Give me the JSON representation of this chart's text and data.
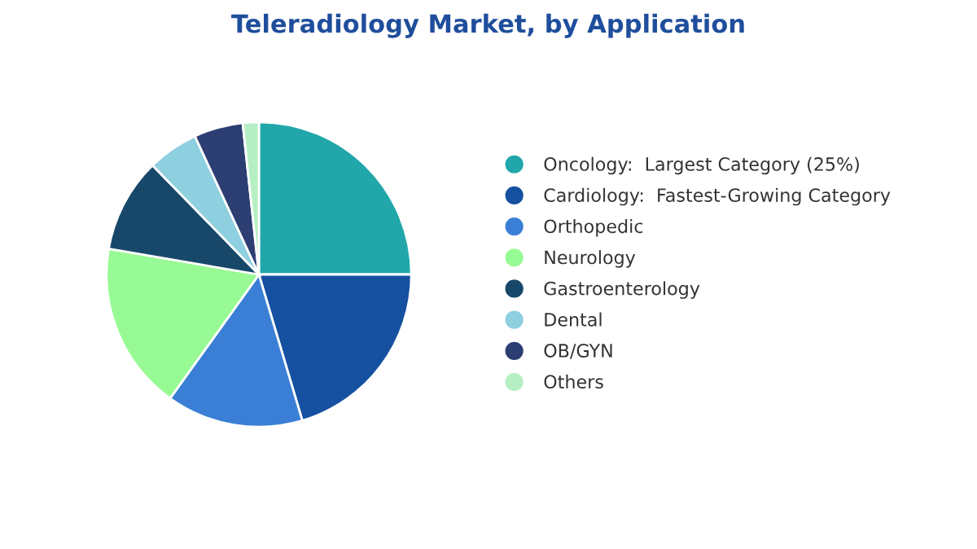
{
  "chart_data": {
    "type": "pie",
    "title": "Teleradiology Market, by Application",
    "categories": [
      "Oncology:  Largest Category (25%)",
      "Cardiology:  Fastest-Growing Category",
      "Orthopedic",
      "Neurology",
      "Gastroenterology",
      "Dental",
      "OB/GYN",
      "Others"
    ],
    "values": [
      25,
      20.4,
      14.5,
      17.8,
      10,
      5.4,
      5.2,
      1.7
    ],
    "colors": [
      "#21a7aa",
      "#1650a0",
      "#3a7fd5",
      "#98fa94",
      "#17486a",
      "#8ecfe0",
      "#2c3e72",
      "#b7efc5"
    ],
    "legend": "right"
  }
}
